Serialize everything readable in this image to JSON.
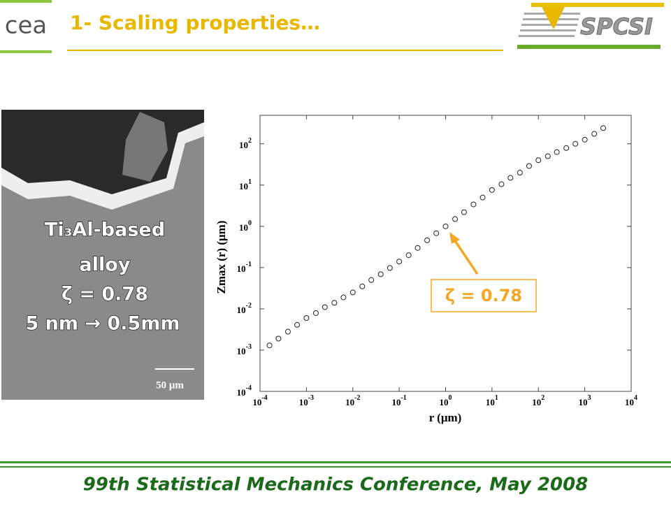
{
  "header": {
    "title": "1- Scaling properties…",
    "logo_left": "cea",
    "logo_right": "SPCSI"
  },
  "image": {
    "lines": [
      "Ti₃Al-based",
      "alloy",
      "ζ = 0.78",
      "5 nm → 0.5mm"
    ],
    "scale_bar": "50 μm"
  },
  "chart_data": {
    "type": "scatter",
    "y_label": "Zmax (r)  (μm)",
    "x_label": "r  (μm)",
    "annotation": "ζ = 0.78",
    "log_x": true,
    "log_y": true,
    "color": "#222222",
    "xlim": [
      0.0001,
      10000
    ],
    "ylim": [
      0.0001,
      490
    ],
    "xticks": [
      {
        "value": 0.0001,
        "label": "10",
        "exponent": "-4"
      },
      {
        "value": 0.001,
        "label": "10",
        "exponent": "-3"
      },
      {
        "value": 0.01,
        "label": "10",
        "exponent": "-2"
      },
      {
        "value": 0.1,
        "label": "10",
        "exponent": "-1"
      },
      {
        "value": 1,
        "label": "10",
        "exponent": "0"
      },
      {
        "value": 10,
        "label": "10",
        "exponent": "1"
      },
      {
        "value": 100,
        "label": "10",
        "exponent": "2"
      },
      {
        "value": 1000,
        "label": "10",
        "exponent": "3"
      },
      {
        "value": 10000,
        "label": "10",
        "exponent": "4"
      }
    ],
    "yticks": [
      {
        "value": 0.0001,
        "label": "10",
        "exponent": "-4"
      },
      {
        "value": 0.001,
        "label": "10",
        "exponent": "-3"
      },
      {
        "value": 0.01,
        "label": "10",
        "exponent": "-2"
      },
      {
        "value": 0.1,
        "label": "10",
        "exponent": "-1"
      },
      {
        "value": 1,
        "label": "10",
        "exponent": "0"
      },
      {
        "value": 10,
        "label": "10",
        "exponent": "1"
      },
      {
        "value": 100,
        "label": "10",
        "exponent": "2"
      }
    ],
    "x": [
      0.00016,
      0.00025,
      0.0004,
      0.00063,
      0.001,
      0.0016,
      0.0025,
      0.004,
      0.0063,
      0.01,
      0.016,
      0.025,
      0.04,
      0.063,
      0.1,
      0.16,
      0.25,
      0.4,
      0.63,
      1,
      1.6,
      2.5,
      4,
      6.3,
      10,
      16,
      25,
      40,
      63,
      100,
      160,
      250,
      400,
      630,
      1000,
      1600,
      2500
    ],
    "values": [
      0.0013,
      0.0019,
      0.0028,
      0.0041,
      0.006,
      0.0079,
      0.011,
      0.014,
      0.019,
      0.025,
      0.035,
      0.05,
      0.069,
      0.098,
      0.14,
      0.2,
      0.3,
      0.46,
      0.68,
      1,
      1.5,
      2.2,
      3.4,
      5,
      7.6,
      10.5,
      15,
      20,
      29,
      40,
      50,
      63,
      79,
      100,
      126,
      174,
      240
    ]
  },
  "footer": {
    "text": "99th Statistical Mechanics Conference, May 2008"
  }
}
